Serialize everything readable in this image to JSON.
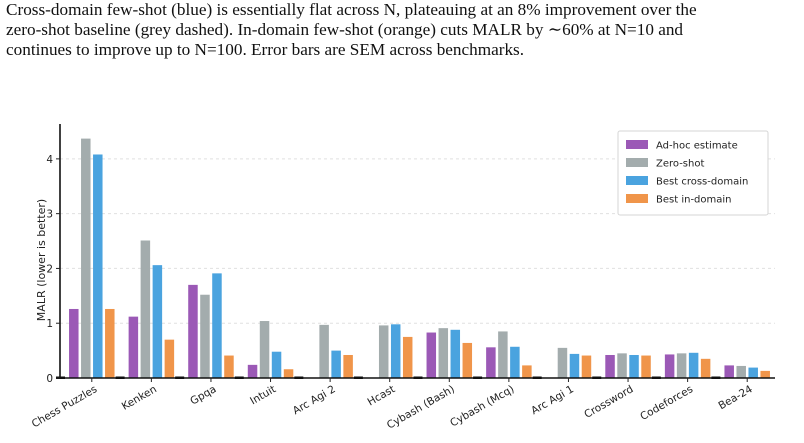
{
  "caption": {
    "line1": "Cross-domain few-shot (blue) is essentially flat across N, plateauing at an 8% improvement over the",
    "line2": "zero-shot baseline (grey dashed). In-domain few-shot (orange) cuts MALR by ∼60% at N=10 and",
    "line3": "continues to improve up to N=100. Error bars are SEM across benchmarks."
  },
  "chart_data": {
    "type": "bar",
    "ylabel": "MALR (lower is better)",
    "xlabel": "",
    "ylim": [
      0,
      4.6
    ],
    "yticks": [
      0,
      1,
      2,
      3,
      4
    ],
    "grid": true,
    "legend_position": "top-right",
    "categories": [
      "Chess Puzzles",
      "Kenken",
      "Gpqa",
      "Intuit",
      "Arc Agi 2",
      "Hcast",
      "Cybash (Bash)",
      "Cybash (Mcq)",
      "Arc Agi 1",
      "Crossword",
      "Codeforces",
      "Bea-24"
    ],
    "series": [
      {
        "name": "Ad-hoc estimate",
        "color": "#9b59b6",
        "values": [
          1.26,
          1.12,
          1.7,
          0.24,
          0.0,
          0.0,
          0.83,
          0.56,
          0.0,
          0.42,
          0.43,
          0.23
        ]
      },
      {
        "name": "Zero-shot",
        "color": "#a3acad",
        "values": [
          4.37,
          2.51,
          1.52,
          1.04,
          0.97,
          0.96,
          0.91,
          0.85,
          0.55,
          0.45,
          0.45,
          0.22
        ]
      },
      {
        "name": "Best cross-domain",
        "color": "#4aa3df",
        "values": [
          4.08,
          2.06,
          1.91,
          0.48,
          0.5,
          0.98,
          0.88,
          0.57,
          0.44,
          0.42,
          0.46,
          0.19
        ]
      },
      {
        "name": "Best in-domain",
        "color": "#f0954a",
        "values": [
          1.26,
          0.7,
          0.41,
          0.16,
          0.42,
          0.75,
          0.64,
          0.23,
          0.41,
          0.41,
          0.35,
          0.13
        ]
      }
    ]
  }
}
